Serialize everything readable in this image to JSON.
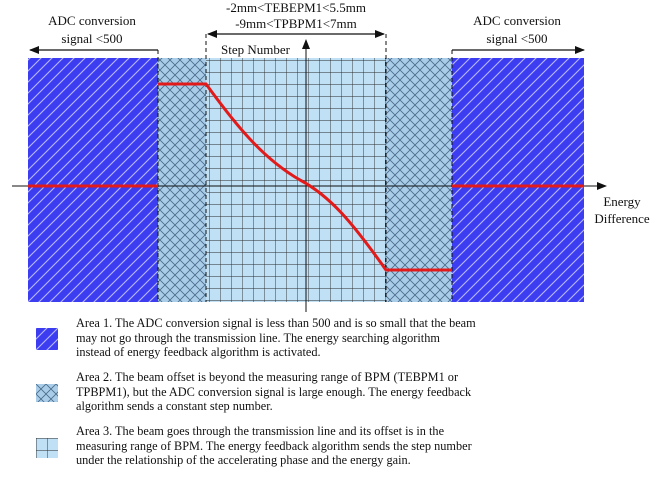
{
  "diagram": {
    "left_label_line1": "ADC conversion",
    "left_label_line2": "signal <500",
    "right_label_line1": "ADC conversion",
    "right_label_line2": "signal <500",
    "center_range_line1": "-2mm<TEBEPM1<5.5mm",
    "center_range_line2": "-9mm<TPBPM1<7mm",
    "y_axis_label": "Step Number",
    "x_axis_label_line1": "Energy",
    "x_axis_label_line2": "Difference",
    "colors": {
      "area1": "#3c3cf0",
      "area2": "#a9cde8",
      "area3": "#bfe0f5",
      "curve": "#e21a1a"
    }
  },
  "legend": [
    {
      "swatch": "area1-diagonal-hatch",
      "lines": [
        "Area 1. The ADC conversion signal is less than 500 and is so small that the beam",
        "may not go through the transmission line. The energy searching algorithm",
        "instead of energy feedback algorithm is activated."
      ]
    },
    {
      "swatch": "area2-crosshatch",
      "lines": [
        "Area 2. The beam offset is beyond the measuring range of BPM (TEBPM1 or",
        "TPBPM1), but the ADC conversion signal is large enough. The energy feedback",
        "algorithm sends a constant step number."
      ]
    },
    {
      "swatch": "area3-grid",
      "lines": [
        "Area 3. The beam goes through the transmission line and its offset is in the",
        "measuring range of BPM. The energy feedback algorithm sends the step number",
        "under the relationship of the accelerating phase and the energy gain."
      ]
    }
  ]
}
